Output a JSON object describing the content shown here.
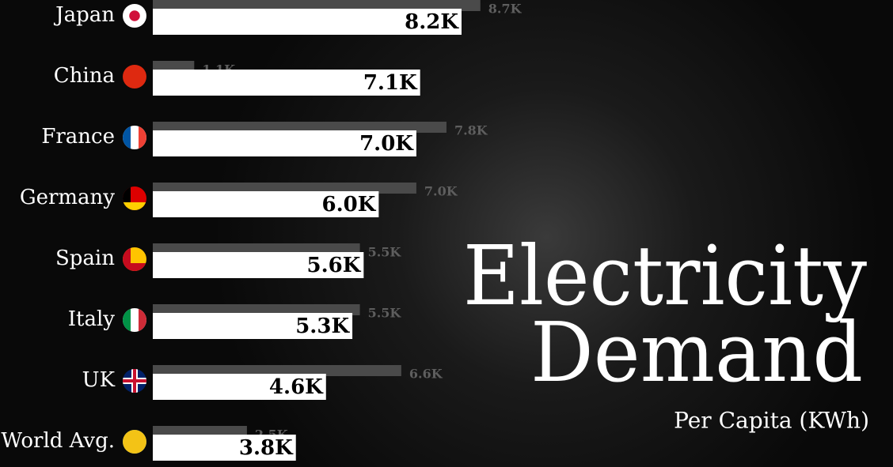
{
  "chart_data": {
    "type": "bar",
    "title": [
      "Electricity",
      "Demand"
    ],
    "subtitle": "Per Capita (KWh)",
    "categories": [
      "Japan",
      "China",
      "France",
      "Germany",
      "Spain",
      "Italy",
      "UK",
      "World Avg."
    ],
    "series": [
      {
        "color": "#4a4a4a",
        "values": [
          8700,
          1100,
          7800,
          7000,
          5500,
          5500,
          6600,
          2500
        ],
        "value_labels": [
          "8.7K",
          "1.1K",
          "7.8K",
          "7.0K",
          "5.5K",
          "5.5K",
          "6.6K",
          "2.5K"
        ]
      },
      {
        "color": "#ffffff",
        "values": [
          8200,
          7100,
          7000,
          6000,
          5600,
          5300,
          4600,
          3800
        ],
        "value_labels": [
          "8.2K",
          "7.1K",
          "7.0K",
          "6.0K",
          "5.6K",
          "5.3K",
          "4.6K",
          "3.8K"
        ]
      }
    ]
  }
}
